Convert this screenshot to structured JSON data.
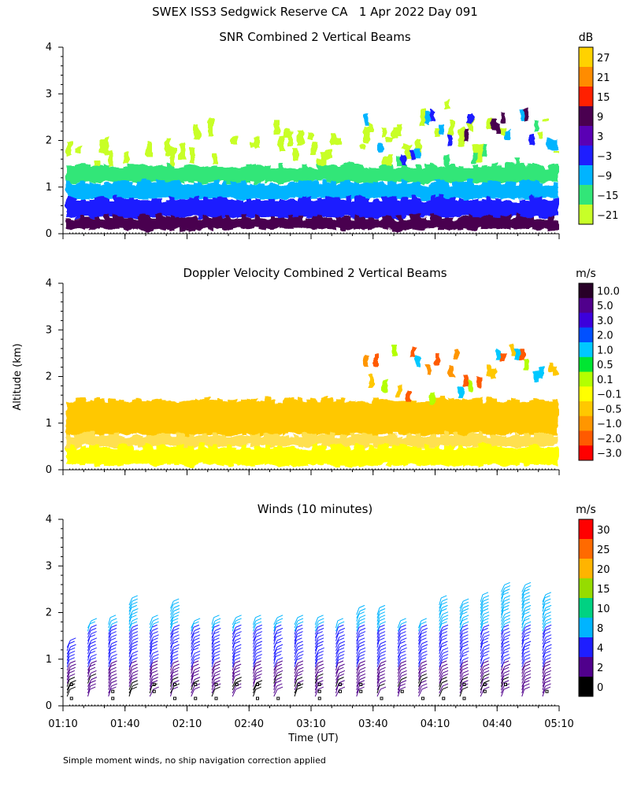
{
  "page_title": "SWEX ISS3 Sedgwick Reserve CA   1 Apr 2022 Day 091",
  "y_axis_label": "Altitude (km)",
  "x_axis_label": "Time (UT)",
  "footnote": "Simple moment winds, no ship navigation correction applied",
  "chart_data": [
    {
      "type": "heatmap",
      "title": "SNR Combined 2 Vertical Beams",
      "ylabel": "Altitude (km)",
      "yticks": [
        "0",
        "1",
        "2",
        "3",
        "4"
      ],
      "ylim": [
        0,
        4
      ],
      "xlim_minutes": [
        70,
        310
      ],
      "colorbar": {
        "unit": "dB",
        "ticks": [
          "27",
          "21",
          "15",
          "9",
          "3",
          "−3",
          "−9",
          "−15",
          "−21"
        ],
        "colors": [
          "#ffd200",
          "#ff8c00",
          "#ff2000",
          "#4a0050",
          "#5a00b4",
          "#1e1eff",
          "#00b4ff",
          "#32e678",
          "#c8ff28"
        ]
      },
      "layers": [
        {
          "bottom": 1.45,
          "top": 2.85,
          "color": "#c8ff28",
          "note": "sparse"
        },
        {
          "bottom": 1.1,
          "top": 1.45,
          "color": "#32e678"
        },
        {
          "bottom": 0.75,
          "top": 1.1,
          "color": "#00b4ff"
        },
        {
          "bottom": 0.35,
          "top": 0.75,
          "color": "#1e1eff"
        },
        {
          "bottom": 0.1,
          "top": 0.35,
          "color": "#4a0050"
        }
      ]
    },
    {
      "type": "heatmap",
      "title": "Doppler Velocity Combined 2 Vertical Beams",
      "ylabel": "Altitude (km)",
      "yticks": [
        "0",
        "1",
        "2",
        "3",
        "4"
      ],
      "ylim": [
        0,
        4
      ],
      "xlim_minutes": [
        70,
        310
      ],
      "colorbar": {
        "unit": "m/s",
        "ticks": [
          "10.0",
          "5.0",
          "3.0",
          "2.0",
          "1.0",
          "0.5",
          "0.1",
          "−0.1",
          "−0.5",
          "−1.0",
          "−2.0",
          "−3.0"
        ],
        "colors": [
          "#280028",
          "#50008c",
          "#3c00dc",
          "#0050ff",
          "#00c8ff",
          "#00e632",
          "#b4ff00",
          "#ffff00",
          "#ffc800",
          "#ff9600",
          "#ff5a00",
          "#ff0000"
        ]
      },
      "layers": [
        {
          "bottom": 0.75,
          "top": 1.5,
          "color": "#ffc800"
        },
        {
          "bottom": 0.5,
          "top": 0.75,
          "color": "#ffe050"
        },
        {
          "bottom": 0.1,
          "top": 0.5,
          "color": "#ffff00"
        }
      ]
    },
    {
      "type": "scatter",
      "title": "Winds (10 minutes)",
      "ylabel": "Altitude (km)",
      "xlabel": "Time (UT)",
      "yticks": [
        "0",
        "1",
        "2",
        "3",
        "4"
      ],
      "ylim": [
        0,
        4
      ],
      "xlim_minutes": [
        70,
        310
      ],
      "xticks": [
        "01:10",
        "01:40",
        "02:10",
        "02:40",
        "03:10",
        "03:40",
        "04:10",
        "04:40",
        "05:10"
      ],
      "xtick_minutes": [
        70,
        100,
        130,
        160,
        190,
        220,
        250,
        280,
        310
      ],
      "colorbar": {
        "unit": "m/s",
        "ticks": [
          "30",
          "25",
          "20",
          "15",
          "10",
          "8",
          "4",
          "2",
          "0"
        ],
        "colors": [
          "#ff0000",
          "#ff6a00",
          "#ffb400",
          "#96dc00",
          "#00d282",
          "#00b4ff",
          "#1e1eff",
          "#50008c",
          "#000000"
        ]
      },
      "profile_times_minutes": [
        72,
        82,
        92,
        102,
        112,
        122,
        132,
        142,
        152,
        162,
        172,
        182,
        192,
        202,
        212,
        222,
        232,
        242,
        252,
        262,
        272,
        282,
        292,
        302
      ],
      "profile_top_km": [
        1.3,
        1.7,
        1.8,
        2.2,
        1.8,
        2.1,
        1.7,
        1.8,
        1.8,
        1.8,
        1.8,
        1.8,
        1.8,
        1.7,
        2.0,
        2.0,
        1.7,
        1.7,
        2.2,
        2.1,
        2.3,
        2.5,
        2.5,
        2.3
      ]
    }
  ]
}
